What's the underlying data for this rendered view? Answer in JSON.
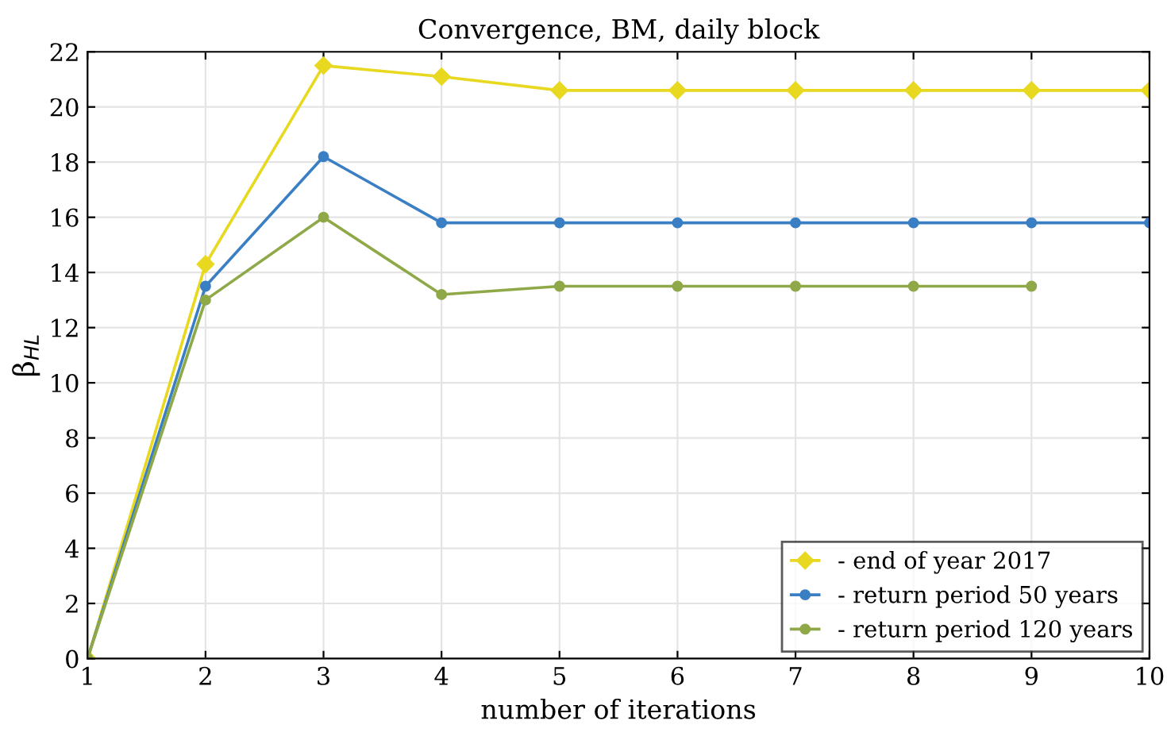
{
  "chart_data": {
    "type": "line",
    "title": "Convergence, BM, daily block",
    "xlabel": "number of iterations",
    "ylabel": "β$_{HL}$",
    "xlim": [
      1,
      10
    ],
    "xticks": [
      1,
      2,
      3,
      4,
      5,
      6,
      7,
      8,
      9,
      10
    ],
    "ylim": [
      0,
      22
    ],
    "yticks": [
      0,
      2,
      4,
      6,
      8,
      10,
      12,
      14,
      16,
      18,
      20,
      22
    ],
    "grid": true,
    "legend": "bottom right",
    "series": [
      {
        "name": "- end of year 2017",
        "color": "#e8d820",
        "marker": "diamond",
        "x": [
          1,
          2,
          3,
          4,
          5,
          6,
          7,
          8,
          9,
          10
        ],
        "values": [
          0,
          14.3,
          21.5,
          21.1,
          20.6,
          20.6,
          20.6,
          20.6,
          20.6,
          20.6
        ]
      },
      {
        "name": "- return period 50 years",
        "color": "#3a7fc4",
        "marker": "circle",
        "x": [
          1,
          2,
          3,
          4,
          5,
          6,
          7,
          8,
          9,
          10
        ],
        "values": [
          0,
          13.5,
          18.2,
          15.8,
          15.8,
          15.8,
          15.8,
          15.8,
          15.8,
          15.8
        ]
      },
      {
        "name": "- return period 120 years",
        "color": "#8fa848",
        "marker": "circle",
        "x": [
          1,
          2,
          3,
          4,
          5,
          6,
          7,
          8,
          9
        ],
        "values": [
          0,
          13.0,
          16.0,
          13.2,
          13.5,
          13.5,
          13.5,
          13.5,
          13.5
        ]
      }
    ]
  }
}
